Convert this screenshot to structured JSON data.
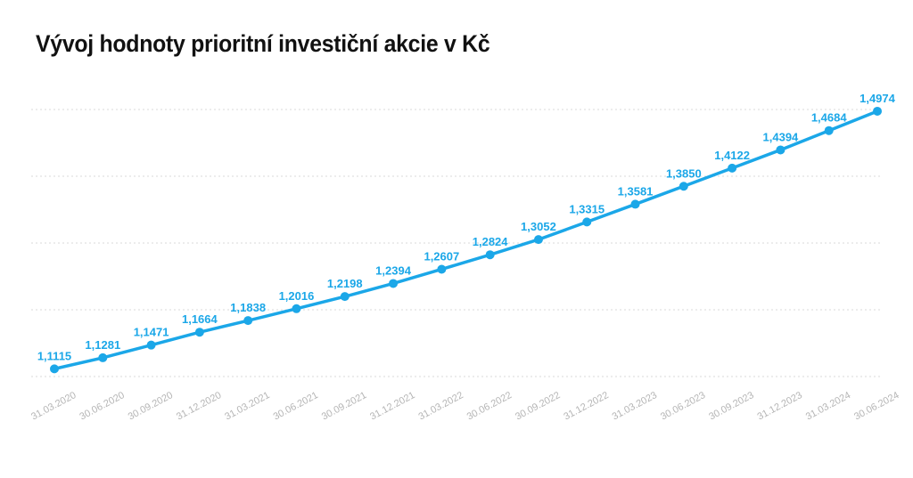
{
  "title": "Vývoj hodnoty prioritní investiční akcie v Kč",
  "colors": {
    "series": "#1ba7e8",
    "grid": "#d9d9d9",
    "tick": "#b5b5b5"
  },
  "chart_data": {
    "type": "line",
    "title": "Vývoj hodnoty prioritní investiční akcie v Kč",
    "xlabel": "",
    "ylabel": "",
    "categories": [
      "31.03.2020",
      "30.06.2020",
      "30.09.2020",
      "31.12.2020",
      "31.03.2021",
      "30.06.2021",
      "30.09.2021",
      "31.12.2021",
      "31.03.2022",
      "30.06.2022",
      "30.09.2022",
      "31.12.2022",
      "31.03.2023",
      "30.06.2023",
      "30.09.2023",
      "31.12.2023",
      "31.03.2024",
      "30.06.2024"
    ],
    "series": [
      {
        "values": [
          1.1115,
          1.1281,
          1.1471,
          1.1664,
          1.1838,
          1.2016,
          1.2198,
          1.2394,
          1.2607,
          1.2824,
          1.3052,
          1.3315,
          1.3581,
          1.385,
          1.4122,
          1.4394,
          1.4684,
          1.4974
        ]
      }
    ],
    "data_labels": [
      "1,1115",
      "1,1281",
      "1,1471",
      "1,1664",
      "1,1838",
      "1,2016",
      "1,2198",
      "1,2394",
      "1,2607",
      "1,2824",
      "1,3052",
      "1,3315",
      "1,3581",
      "1,3850",
      "1,4122",
      "1,4394",
      "1,4684",
      "1,4974"
    ],
    "ylim": [
      1.1,
      1.5
    ],
    "gridlines": [
      1.1,
      1.2,
      1.3,
      1.4,
      1.5
    ],
    "grid": true,
    "legend": "none"
  }
}
